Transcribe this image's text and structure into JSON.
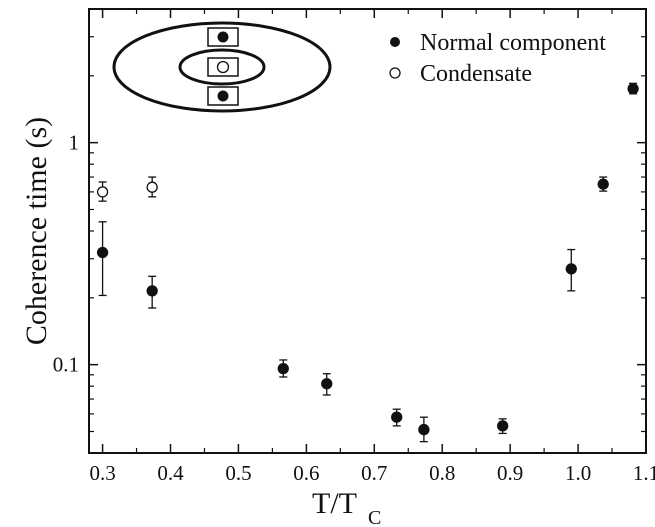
{
  "chart_data": {
    "type": "scatter",
    "xlabel": "T/T",
    "xlabel_sub": "C",
    "ylabel": "Coherence time (s)",
    "xlim": [
      0.28,
      1.1
    ],
    "ylim": [
      0.04,
      4.0
    ],
    "y_scale": "log",
    "x_ticks": [
      0.3,
      0.4,
      0.5,
      0.6,
      0.7,
      0.8,
      0.9,
      1.0,
      1.1
    ],
    "x_tick_labels": [
      "0.3",
      "0.4",
      "0.5",
      "0.6",
      "0.7",
      "0.8",
      "0.9",
      "1.0",
      "1.1"
    ],
    "y_ticks": [
      0.1,
      1
    ],
    "y_tick_labels": [
      "0.1",
      "1"
    ],
    "grid": false,
    "legend_position": "top-right",
    "series": [
      {
        "name": "Normal component",
        "marker": "filled-circle",
        "points": [
          {
            "x": 0.3,
            "y": 0.32,
            "ylo": 0.205,
            "yhi": 0.44
          },
          {
            "x": 0.373,
            "y": 0.215,
            "ylo": 0.18,
            "yhi": 0.25
          },
          {
            "x": 0.566,
            "y": 0.096,
            "ylo": 0.088,
            "yhi": 0.105
          },
          {
            "x": 0.63,
            "y": 0.082,
            "ylo": 0.073,
            "yhi": 0.091
          },
          {
            "x": 0.733,
            "y": 0.058,
            "ylo": 0.053,
            "yhi": 0.063
          },
          {
            "x": 0.773,
            "y": 0.051,
            "ylo": 0.045,
            "yhi": 0.058
          },
          {
            "x": 0.889,
            "y": 0.053,
            "ylo": 0.049,
            "yhi": 0.057
          },
          {
            "x": 0.99,
            "y": 0.27,
            "ylo": 0.215,
            "yhi": 0.33
          },
          {
            "x": 1.037,
            "y": 0.65,
            "ylo": 0.605,
            "yhi": 0.7
          },
          {
            "x": 1.081,
            "y": 1.75,
            "ylo": 1.66,
            "yhi": 1.85
          }
        ]
      },
      {
        "name": "Condensate",
        "marker": "open-circle",
        "points": [
          {
            "x": 0.3,
            "y": 0.6,
            "ylo": 0.545,
            "yhi": 0.665
          },
          {
            "x": 0.373,
            "y": 0.63,
            "ylo": 0.57,
            "yhi": 0.7
          }
        ]
      }
    ]
  }
}
